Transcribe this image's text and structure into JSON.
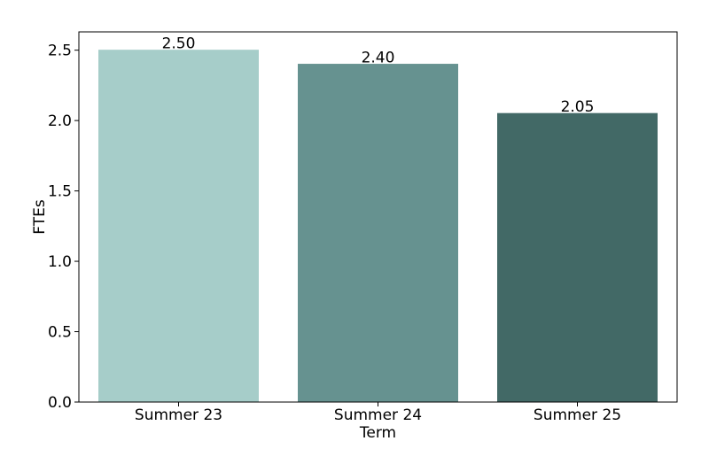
{
  "chart_data": {
    "type": "bar",
    "title": "",
    "xlabel": "Term",
    "ylabel": "FTEs",
    "categories": [
      "Summer 23",
      "Summer 24",
      "Summer 25"
    ],
    "values": [
      2.5,
      2.4,
      2.05
    ],
    "data_labels": [
      "2.50",
      "2.40",
      "2.05"
    ],
    "colors": [
      "#a6cdc9",
      "#669290",
      "#426966"
    ],
    "ylim": [
      0,
      2.63
    ],
    "yticks": [
      0.0,
      0.5,
      1.0,
      1.5,
      2.0,
      2.5
    ],
    "ytick_labels": [
      "0.0",
      "0.5",
      "1.0",
      "1.5",
      "2.0",
      "2.5"
    ],
    "grid": false,
    "legend": "none"
  }
}
